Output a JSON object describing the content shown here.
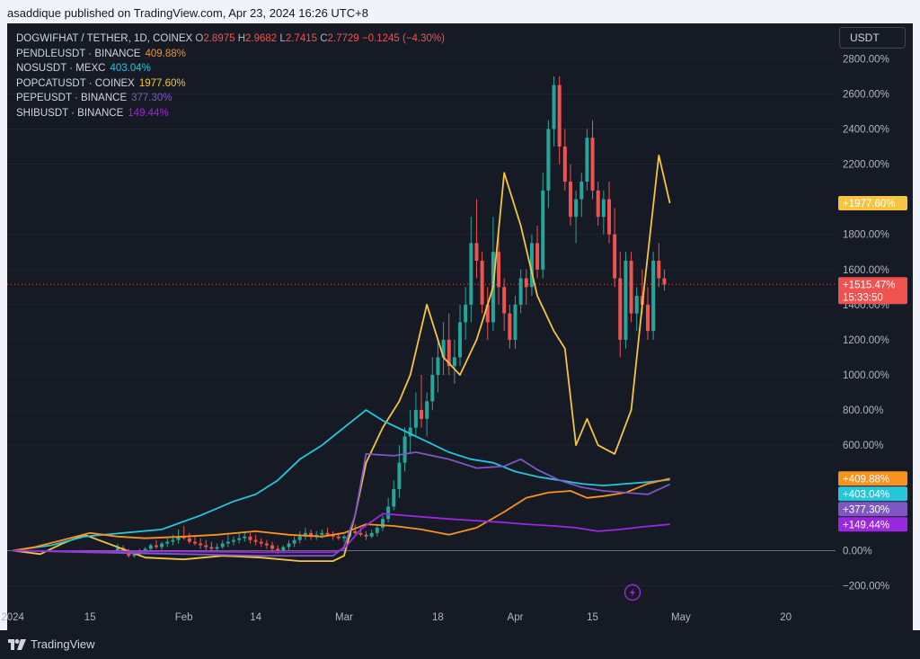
{
  "header": {
    "publisher": "asaddique published on TradingView.com, Apr 23, 2024 16:26 UTC+8"
  },
  "currency": "USDT",
  "legend": {
    "main": {
      "symbol": "DOGWIFHAT / TETHER, 1D, COINEX",
      "o_label": "O",
      "o": "2.8975",
      "h_label": "H",
      "h": "2.9682",
      "l_label": "L",
      "l": "2.7415",
      "c_label": "C",
      "c": "2.7729",
      "change": "−0.1245 (−4.30%)"
    },
    "comparisons": [
      {
        "name": "PENDLEUSDT · BINANCE",
        "value": "409.88%",
        "color": "#f7931e"
      },
      {
        "name": "NOSUSDT · MEXC",
        "value": "403.04%",
        "color": "#26c6da"
      },
      {
        "name": "POPCATUSDT · COINEX",
        "value": "1977.60%",
        "color": "#f5c542"
      },
      {
        "name": "PEPEUSDT · BINANCE",
        "value": "377.30%",
        "color": "#7e57c2"
      },
      {
        "name": "SHIBUSDT · BINANCE",
        "value": "149.44%",
        "color": "#9c27e0"
      }
    ]
  },
  "footer": {
    "brand": "TradingView"
  },
  "colors": {
    "up": "#26a69a",
    "down": "#ef5350",
    "bg": "#161a25"
  },
  "chart_data": {
    "type": "line",
    "scale": "percent",
    "ylim": [
      -300,
      2950
    ],
    "xlim": [
      "2023-12-31",
      "2024-05-29"
    ],
    "y_ticks": [
      "2800.00%",
      "2600.00%",
      "2400.00%",
      "2200.00%",
      "1800.00%",
      "1600.00%",
      "1400.00%",
      "1200.00%",
      "1000.00%",
      "800.00%",
      "600.00%",
      "0.00%",
      "−200.00%"
    ],
    "x_ticks": [
      "2024",
      "15",
      "Feb",
      "14",
      "Mar",
      "18",
      "Apr",
      "15",
      "May",
      "20"
    ],
    "last_value_labels": [
      {
        "text": "+1977.60%",
        "value": 1977.6,
        "color": "#f5c542"
      },
      {
        "text": "+1515.47%",
        "sub": "15:33:50",
        "value": 1515.47,
        "color": "#ef5350"
      },
      {
        "text": "+409.88%",
        "value": 409.88,
        "color": "#f7931e"
      },
      {
        "text": "+403.04%",
        "value": 403.04,
        "color": "#26c6da"
      },
      {
        "text": "+377.30%",
        "value": 377.3,
        "color": "#7e57c2"
      },
      {
        "text": "+149.44%",
        "value": 149.44,
        "color": "#9c27e0"
      }
    ],
    "series": [
      {
        "name": "POPCATUSDT · COINEX",
        "color": "#f5c542",
        "points": [
          [
            "2024-01-01",
            0
          ],
          [
            "2024-01-06",
            -20
          ],
          [
            "2024-01-10",
            40
          ],
          [
            "2024-01-14",
            90
          ],
          [
            "2024-01-20",
            20
          ],
          [
            "2024-01-25",
            -40
          ],
          [
            "2024-02-01",
            -50
          ],
          [
            "2024-02-08",
            -30
          ],
          [
            "2024-02-15",
            -40
          ],
          [
            "2024-02-22",
            -60
          ],
          [
            "2024-02-28",
            -60
          ],
          [
            "2024-03-01",
            -30
          ],
          [
            "2024-03-03",
            200
          ],
          [
            "2024-03-05",
            500
          ],
          [
            "2024-03-08",
            700
          ],
          [
            "2024-03-11",
            850
          ],
          [
            "2024-03-13",
            1000
          ],
          [
            "2024-03-16",
            1400
          ],
          [
            "2024-03-19",
            1100
          ],
          [
            "2024-03-22",
            1000
          ],
          [
            "2024-03-25",
            1200
          ],
          [
            "2024-03-28",
            1500
          ],
          [
            "2024-03-30",
            2150
          ],
          [
            "2024-04-02",
            1850
          ],
          [
            "2024-04-05",
            1450
          ],
          [
            "2024-04-08",
            1250
          ],
          [
            "2024-04-10",
            1150
          ],
          [
            "2024-04-12",
            600
          ],
          [
            "2024-04-14",
            750
          ],
          [
            "2024-04-16",
            600
          ],
          [
            "2024-04-19",
            550
          ],
          [
            "2024-04-22",
            800
          ],
          [
            "2024-04-24",
            1400
          ],
          [
            "2024-04-27",
            2250
          ],
          [
            "2024-04-29",
            1977.6
          ]
        ]
      },
      {
        "name": "NOSUSDT · MEXC",
        "color": "#26c6da",
        "points": [
          [
            "2024-01-01",
            0
          ],
          [
            "2024-01-08",
            30
          ],
          [
            "2024-01-14",
            80
          ],
          [
            "2024-01-21",
            100
          ],
          [
            "2024-01-28",
            120
          ],
          [
            "2024-02-04",
            200
          ],
          [
            "2024-02-10",
            280
          ],
          [
            "2024-02-14",
            320
          ],
          [
            "2024-02-18",
            400
          ],
          [
            "2024-02-22",
            520
          ],
          [
            "2024-02-26",
            600
          ],
          [
            "2024-03-01",
            700
          ],
          [
            "2024-03-05",
            800
          ],
          [
            "2024-03-08",
            740
          ],
          [
            "2024-03-12",
            680
          ],
          [
            "2024-03-16",
            620
          ],
          [
            "2024-03-20",
            560
          ],
          [
            "2024-03-24",
            520
          ],
          [
            "2024-03-28",
            500
          ],
          [
            "2024-04-01",
            450
          ],
          [
            "2024-04-05",
            420
          ],
          [
            "2024-04-09",
            400
          ],
          [
            "2024-04-13",
            380
          ],
          [
            "2024-04-17",
            370
          ],
          [
            "2024-04-21",
            380
          ],
          [
            "2024-04-25",
            390
          ],
          [
            "2024-04-29",
            403.04
          ]
        ]
      },
      {
        "name": "PENDLEUSDT · BINANCE",
        "color": "#f7931e",
        "points": [
          [
            "2024-01-01",
            0
          ],
          [
            "2024-01-05",
            20
          ],
          [
            "2024-01-10",
            60
          ],
          [
            "2024-01-15",
            100
          ],
          [
            "2024-01-20",
            80
          ],
          [
            "2024-01-25",
            70
          ],
          [
            "2024-02-01",
            80
          ],
          [
            "2024-02-07",
            90
          ],
          [
            "2024-02-14",
            110
          ],
          [
            "2024-02-20",
            90
          ],
          [
            "2024-02-26",
            80
          ],
          [
            "2024-03-01",
            100
          ],
          [
            "2024-03-05",
            150
          ],
          [
            "2024-03-10",
            140
          ],
          [
            "2024-03-15",
            120
          ],
          [
            "2024-03-20",
            90
          ],
          [
            "2024-03-25",
            130
          ],
          [
            "2024-03-30",
            220
          ],
          [
            "2024-04-03",
            300
          ],
          [
            "2024-04-07",
            330
          ],
          [
            "2024-04-11",
            340
          ],
          [
            "2024-04-14",
            300
          ],
          [
            "2024-04-17",
            310
          ],
          [
            "2024-04-21",
            330
          ],
          [
            "2024-04-25",
            380
          ],
          [
            "2024-04-29",
            409.88
          ]
        ]
      },
      {
        "name": "PEPEUSDT · BINANCE",
        "color": "#7e57c2",
        "points": [
          [
            "2024-01-01",
            0
          ],
          [
            "2024-01-15",
            -10
          ],
          [
            "2024-02-01",
            -20
          ],
          [
            "2024-02-15",
            -30
          ],
          [
            "2024-02-28",
            -30
          ],
          [
            "2024-03-01",
            20
          ],
          [
            "2024-03-03",
            200
          ],
          [
            "2024-03-05",
            550
          ],
          [
            "2024-03-10",
            540
          ],
          [
            "2024-03-14",
            560
          ],
          [
            "2024-03-20",
            520
          ],
          [
            "2024-03-25",
            470
          ],
          [
            "2024-03-30",
            480
          ],
          [
            "2024-04-02",
            520
          ],
          [
            "2024-04-05",
            460
          ],
          [
            "2024-04-09",
            400
          ],
          [
            "2024-04-13",
            360
          ],
          [
            "2024-04-17",
            340
          ],
          [
            "2024-04-21",
            330
          ],
          [
            "2024-04-25",
            320
          ],
          [
            "2024-04-29",
            377.3
          ]
        ]
      },
      {
        "name": "SHIBUSDT · BINANCE",
        "color": "#9c27e0",
        "points": [
          [
            "2024-01-01",
            0
          ],
          [
            "2024-01-15",
            -5
          ],
          [
            "2024-02-01",
            -5
          ],
          [
            "2024-02-15",
            -10
          ],
          [
            "2024-02-28",
            -10
          ],
          [
            "2024-03-01",
            10
          ],
          [
            "2024-03-04",
            120
          ],
          [
            "2024-03-08",
            210
          ],
          [
            "2024-03-12",
            200
          ],
          [
            "2024-03-16",
            190
          ],
          [
            "2024-03-20",
            180
          ],
          [
            "2024-03-25",
            170
          ],
          [
            "2024-03-30",
            160
          ],
          [
            "2024-04-03",
            150
          ],
          [
            "2024-04-08",
            140
          ],
          [
            "2024-04-12",
            130
          ],
          [
            "2024-04-16",
            110
          ],
          [
            "2024-04-20",
            120
          ],
          [
            "2024-04-24",
            135
          ],
          [
            "2024-04-29",
            149.44
          ]
        ]
      }
    ],
    "candles": {
      "name": "DOGWIFHAT / TETHER, 1D, COINEX",
      "ohlc": [
        [
          0,
          40,
          -5,
          15
        ],
        [
          15,
          30,
          -20,
          -10
        ],
        [
          -10,
          10,
          -40,
          -30
        ],
        [
          -30,
          0,
          -40,
          -20
        ],
        [
          -20,
          10,
          -35,
          -5
        ],
        [
          -5,
          20,
          -20,
          10
        ],
        [
          10,
          40,
          0,
          30
        ],
        [
          30,
          60,
          10,
          20
        ],
        [
          20,
          50,
          5,
          40
        ],
        [
          40,
          70,
          20,
          50
        ],
        [
          50,
          90,
          30,
          60
        ],
        [
          60,
          120,
          40,
          80
        ],
        [
          80,
          140,
          60,
          70
        ],
        [
          70,
          100,
          40,
          50
        ],
        [
          50,
          80,
          30,
          40
        ],
        [
          40,
          70,
          10,
          30
        ],
        [
          30,
          60,
          0,
          20
        ],
        [
          20,
          50,
          -5,
          10
        ],
        [
          10,
          40,
          -10,
          20
        ],
        [
          20,
          60,
          10,
          40
        ],
        [
          40,
          90,
          20,
          50
        ],
        [
          50,
          80,
          30,
          60
        ],
        [
          60,
          100,
          40,
          70
        ],
        [
          70,
          110,
          50,
          80
        ],
        [
          80,
          100,
          40,
          60
        ],
        [
          60,
          90,
          30,
          50
        ],
        [
          50,
          70,
          20,
          40
        ],
        [
          40,
          60,
          10,
          30
        ],
        [
          30,
          50,
          -10,
          10
        ],
        [
          10,
          30,
          -20,
          0
        ],
        [
          0,
          30,
          -10,
          20
        ],
        [
          20,
          60,
          0,
          40
        ],
        [
          40,
          80,
          20,
          60
        ],
        [
          60,
          110,
          40,
          80
        ],
        [
          80,
          130,
          60,
          100
        ],
        [
          100,
          120,
          60,
          80
        ],
        [
          80,
          110,
          60,
          90
        ],
        [
          90,
          120,
          70,
          100
        ],
        [
          100,
          130,
          80,
          90
        ],
        [
          90,
          110,
          60,
          80
        ],
        [
          80,
          100,
          60,
          70
        ],
        [
          70,
          90,
          50,
          80
        ],
        [
          80,
          120,
          70,
          110
        ],
        [
          110,
          150,
          90,
          100
        ],
        [
          100,
          130,
          80,
          90
        ],
        [
          90,
          110,
          60,
          80
        ],
        [
          80,
          120,
          70,
          100
        ],
        [
          100,
          150,
          80,
          130
        ],
        [
          130,
          200,
          110,
          180
        ],
        [
          180,
          300,
          160,
          250
        ],
        [
          250,
          400,
          230,
          350
        ],
        [
          350,
          600,
          300,
          500
        ],
        [
          500,
          700,
          450,
          650
        ],
        [
          650,
          800,
          550,
          700
        ],
        [
          700,
          900,
          650,
          800
        ],
        [
          800,
          1000,
          700,
          750
        ],
        [
          750,
          900,
          650,
          850
        ],
        [
          850,
          1100,
          800,
          1000
        ],
        [
          1000,
          1200,
          900,
          1100
        ],
        [
          1100,
          1300,
          1000,
          1200
        ],
        [
          1200,
          1350,
          1000,
          1050
        ],
        [
          1050,
          1200,
          950,
          1100
        ],
        [
          1100,
          1400,
          1050,
          1300
        ],
        [
          1300,
          1500,
          1200,
          1400
        ],
        [
          1400,
          1900,
          1300,
          1750
        ],
        [
          1750,
          2000,
          1550,
          1650
        ],
        [
          1650,
          1700,
          1350,
          1400
        ],
        [
          1400,
          1500,
          1200,
          1300
        ],
        [
          1300,
          1900,
          1250,
          1700
        ],
        [
          1700,
          1800,
          1400,
          1500
        ],
        [
          1500,
          1550,
          1250,
          1350
        ],
        [
          1350,
          1400,
          1150,
          1200
        ],
        [
          1200,
          1450,
          1150,
          1400
        ],
        [
          1400,
          1600,
          1350,
          1550
        ],
        [
          1550,
          1600,
          1400,
          1500
        ],
        [
          1500,
          1800,
          1450,
          1750
        ],
        [
          1750,
          1850,
          1550,
          1600
        ],
        [
          1600,
          2150,
          1550,
          2050
        ],
        [
          2050,
          2450,
          1950,
          2400
        ],
        [
          2400,
          2700,
          2300,
          2650
        ],
        [
          2650,
          2700,
          2200,
          2300
        ],
        [
          2300,
          2400,
          2050,
          2100
        ],
        [
          2100,
          2200,
          1850,
          1900
        ],
        [
          1900,
          2050,
          1750,
          2000
        ],
        [
          2000,
          2150,
          1900,
          2100
        ],
        [
          2100,
          2400,
          2050,
          2350
        ],
        [
          2350,
          2450,
          2000,
          2050
        ],
        [
          2050,
          2100,
          1850,
          1900
        ],
        [
          1900,
          2050,
          1800,
          2000
        ],
        [
          2000,
          2100,
          1750,
          1800
        ],
        [
          1800,
          1950,
          1500,
          1550
        ],
        [
          1550,
          1700,
          1100,
          1200
        ],
        [
          1200,
          1700,
          1150,
          1650
        ],
        [
          1650,
          1700,
          1300,
          1350
        ],
        [
          1350,
          1500,
          1250,
          1450
        ],
        [
          1450,
          1600,
          1350,
          1400
        ],
        [
          1400,
          1500,
          1200,
          1250
        ],
        [
          1250,
          1700,
          1200,
          1650
        ],
        [
          1650,
          1750,
          1500,
          1550
        ],
        [
          1550,
          1600,
          1480,
          1515.47
        ]
      ]
    }
  }
}
